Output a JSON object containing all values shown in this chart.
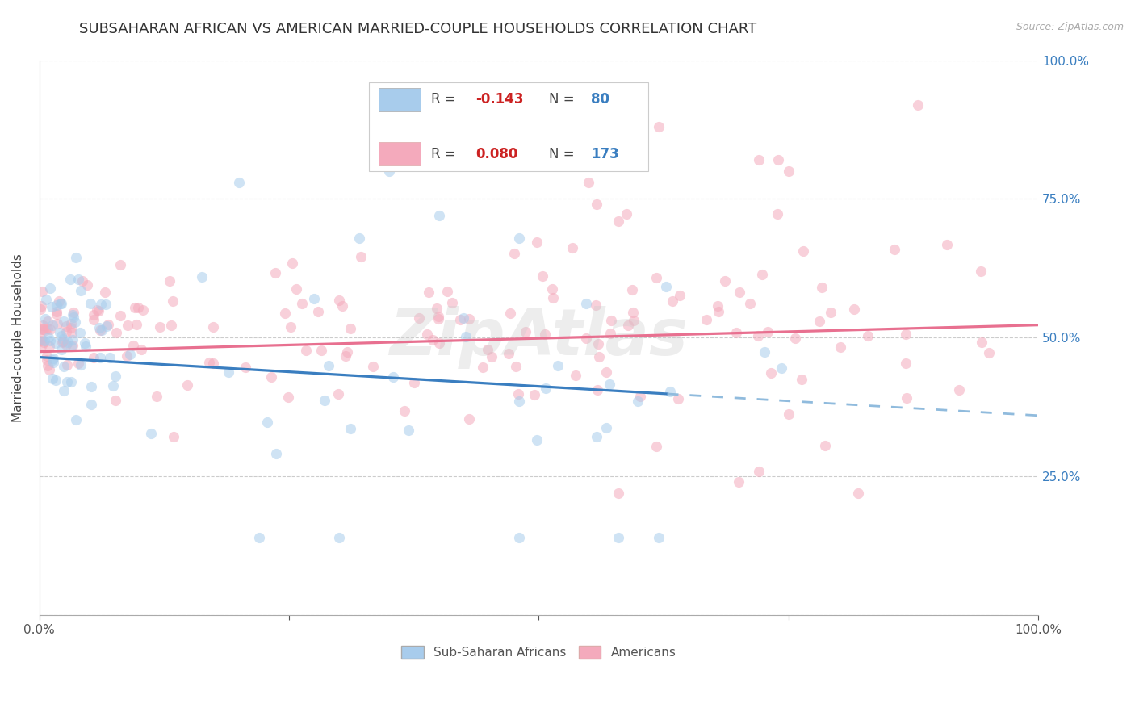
{
  "title": "SUBSAHARAN AFRICAN VS AMERICAN MARRIED-COUPLE HOUSEHOLDS CORRELATION CHART",
  "source": "Source: ZipAtlas.com",
  "ylabel": "Married-couple Households",
  "xlim": [
    0.0,
    1.0
  ],
  "ylim": [
    0.0,
    1.0
  ],
  "blue_color": "#A8CCEC",
  "pink_color": "#F4AABC",
  "blue_line_color": "#3A7EC0",
  "pink_line_color": "#E87090",
  "dashed_line_color": "#90BBDD",
  "watermark": "ZipAtlas",
  "legend_label_blue": "Sub-Saharan Africans",
  "legend_label_pink": "Americans",
  "title_fontsize": 13,
  "axis_fontsize": 11,
  "tick_fontsize": 11,
  "marker_size": 90,
  "marker_alpha": 0.55,
  "grid_color": "#CCCCCC",
  "background_color": "#FFFFFF",
  "blue_R": "-0.143",
  "blue_N": "80",
  "pink_R": "0.080",
  "pink_N": "173"
}
